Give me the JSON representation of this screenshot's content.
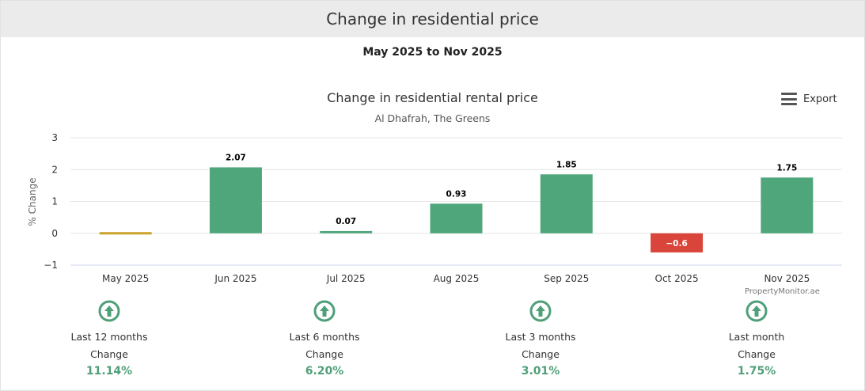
{
  "header": {
    "title": "Change in residential price"
  },
  "period_label": "May 2025 to Nov 2025",
  "export_label": "Export",
  "credit": "PropertyMonitor.ae",
  "colors": {
    "positive": "#4fa67a",
    "negative": "#d9453a",
    "zero": "#c9a227"
  },
  "chart_data": {
    "type": "bar",
    "title": "Change in residential rental price",
    "subtitle": "Al Dhafrah, The Greens",
    "ylabel": "% Change",
    "xlabel": "",
    "categories": [
      "May 2025",
      "Jun 2025",
      "Jul 2025",
      "Aug 2025",
      "Sep 2025",
      "Oct 2025",
      "Nov 2025"
    ],
    "values": [
      0,
      2.07,
      0.07,
      0.93,
      1.85,
      -0.6,
      1.75
    ],
    "data_labels": [
      "",
      "2.07",
      "0.07",
      "0.93",
      "1.85",
      "−0.6",
      "1.75"
    ],
    "ylim": [
      -1,
      3
    ],
    "yticks": [
      "3",
      "2",
      "1",
      "0",
      "−1"
    ],
    "ytick_values": [
      3,
      2,
      1,
      0,
      -1
    ],
    "grid": true,
    "legend": "none"
  },
  "stats": [
    {
      "period": "Last 12 months",
      "change_label": "Change",
      "value": "11.14%",
      "icon": "arrow-up-circle-icon"
    },
    {
      "period": "Last 6 months",
      "change_label": "Change",
      "value": "6.20%",
      "icon": "arrow-up-circle-icon"
    },
    {
      "period": "Last 3 months",
      "change_label": "Change",
      "value": "3.01%",
      "icon": "arrow-up-circle-icon"
    },
    {
      "period": "Last month",
      "change_label": "Change",
      "value": "1.75%",
      "icon": "arrow-up-circle-icon"
    }
  ]
}
